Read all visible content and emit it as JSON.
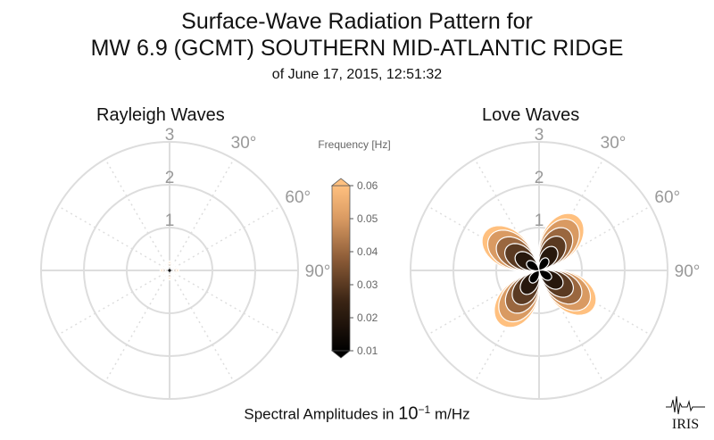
{
  "header": {
    "title_line1": "Surface-Wave Radiation Pattern for",
    "title_line2": "MW 6.9 (GCMT) SOUTHERN MID-ATLANTIC RIDGE",
    "subtitle": "of June 17, 2015, 12:51:32"
  },
  "colorbar": {
    "label": "Frequency [Hz]",
    "ticks": [
      "0.01",
      "0.02",
      "0.03",
      "0.04",
      "0.05",
      "0.06"
    ],
    "min": 0.01,
    "max": 0.06
  },
  "footer": {
    "text_prefix": "Spectral Amplitudes in ",
    "text_base": "10",
    "text_exp": "−1",
    "text_suffix": " m/Hz"
  },
  "logo": {
    "text": "IRIS"
  },
  "colors": {
    "grid": "#dddddd",
    "tick_label": "#999999",
    "low_freq": "#000000",
    "high_freq": "#ffc07f"
  },
  "chart_data": [
    {
      "type": "polar",
      "title": "Rayleigh Waves",
      "radial_ticks": [
        "1",
        "2",
        "3"
      ],
      "rlim": [
        0,
        3
      ],
      "angle_ticks": [
        "30°",
        "60°",
        "90°"
      ],
      "pattern": {
        "lobes": 4,
        "lobe_center_azimuths_deg": [
          45,
          135,
          225,
          315
        ],
        "max_amplitude": 0.22,
        "min_amplitude": 0.13
      },
      "frequencies": [
        0.06,
        0.05,
        0.04,
        0.03,
        0.02,
        0.01
      ]
    },
    {
      "type": "polar",
      "title": "Love Waves",
      "radial_ticks": [
        "1",
        "2",
        "3"
      ],
      "rlim": [
        0,
        3
      ],
      "angle_ticks": [
        "30°",
        "60°",
        "90°"
      ],
      "pattern": {
        "lobes": 4,
        "lobe_center_azimuths_deg": [
          35,
          125,
          215,
          305
        ],
        "max_amplitude": 1.55
      },
      "frequencies": [
        0.06,
        0.05,
        0.04,
        0.03,
        0.02,
        0.01
      ],
      "relative_amplitude_by_frequency": [
        1.0,
        0.9,
        0.75,
        0.6,
        0.42,
        0.22
      ]
    }
  ]
}
